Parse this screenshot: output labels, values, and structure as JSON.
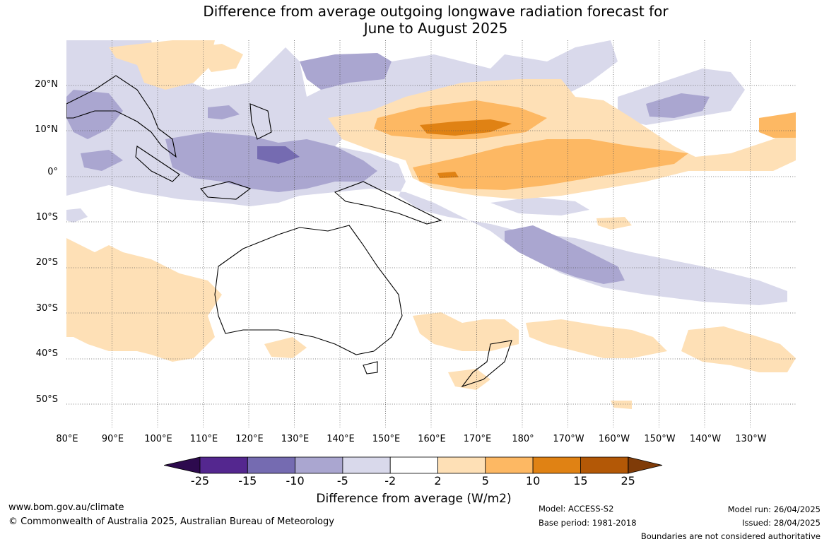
{
  "title_line1": "Difference from average outgoing longwave radiation forecast for",
  "title_line2": "June to August 2025",
  "lat_labels": [
    "20°N",
    "10°N",
    "0°",
    "10°S",
    "20°S",
    "30°S",
    "40°S",
    "50°S"
  ],
  "lon_labels": [
    "80°E",
    "90°E",
    "100°E",
    "110°E",
    "120°E",
    "130°E",
    "140°E",
    "150°E",
    "160°E",
    "170°E",
    "180°",
    "170°W",
    "160°W",
    "150°W",
    "140°W",
    "130°W"
  ],
  "colorbar": {
    "ticks": [
      "-25",
      "-15",
      "-10",
      "-5",
      "-2",
      "2",
      "5",
      "10",
      "15",
      "25"
    ],
    "colors": {
      "below_-25": "#2d0a4e",
      "-25_-15": "#54278f",
      "-15_-10": "#756bb1",
      "-10_-5": "#aaa6d0",
      "-5_-2": "#d9d9eb",
      "-2_2": "#ffffff",
      "2_5": "#fee0b6",
      "5_10": "#fdb863",
      "10_15": "#e08214",
      "15_25": "#b35806",
      "above_25": "#7f3b08"
    },
    "label": "Difference from average (W/m2)"
  },
  "footer": {
    "url": "www.bom.gov.au/climate",
    "copyright": "© Commonwealth of Australia 2025, Australian Bureau of Meteorology",
    "model": "Model: ACCESS-S2",
    "base_period": "Base period: 1981-2018",
    "model_run": "Model run: 26/04/2025",
    "issued": "Issued: 28/04/2025",
    "disclaimer": "Boundaries are not considered authoritative"
  }
}
